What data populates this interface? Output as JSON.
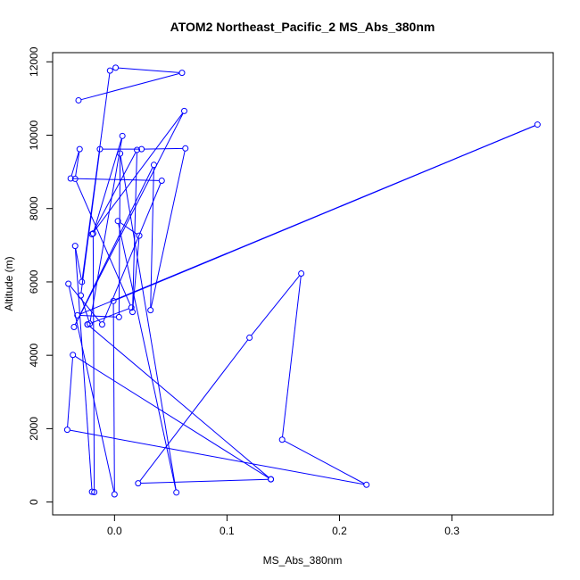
{
  "chart_data": {
    "type": "line",
    "title": "ATOM2 Northeast_Pacific_2 MS_Abs_380nm",
    "xlabel": "MS_Abs_380nm",
    "ylabel": "Altitude (m)",
    "xlim": [
      -0.055,
      0.39
    ],
    "ylim": [
      -350,
      12250
    ],
    "x_ticks": [
      {
        "value": 0.0,
        "label": "0.0"
      },
      {
        "value": 0.1,
        "label": "0.1"
      },
      {
        "value": 0.2,
        "label": "0.2"
      },
      {
        "value": 0.3,
        "label": "0.3"
      }
    ],
    "y_ticks": [
      {
        "value": 0,
        "label": "0"
      },
      {
        "value": 2000,
        "label": "2000"
      },
      {
        "value": 4000,
        "label": "4000"
      },
      {
        "value": 6000,
        "label": "6000"
      },
      {
        "value": 8000,
        "label": "8000"
      },
      {
        "value": 10000,
        "label": "10000"
      },
      {
        "value": 12000,
        "label": "12000"
      }
    ],
    "series_color": "#0000ff",
    "series": [
      {
        "points": [
          {
            "x": -0.032,
            "y": 10950
          },
          {
            "x": 0.06,
            "y": 11700
          },
          {
            "x": 0.001,
            "y": 11840
          },
          {
            "x": -0.004,
            "y": 11760
          },
          {
            "x": -0.029,
            "y": 6000
          },
          {
            "x": -0.035,
            "y": 6980
          },
          {
            "x": -0.02,
            "y": 280
          },
          {
            "x": -0.018,
            "y": 270
          },
          {
            "x": -0.019,
            "y": 7320
          },
          {
            "x": 0.007,
            "y": 9980
          },
          {
            "x": -0.022,
            "y": 4860
          },
          {
            "x": -0.03,
            "y": 5630
          },
          {
            "x": -0.013,
            "y": 9620
          },
          {
            "x": 0.024,
            "y": 9620
          },
          {
            "x": 0.063,
            "y": 9640
          },
          {
            "x": 0.032,
            "y": 5230
          },
          {
            "x": 0.035,
            "y": 9190
          },
          {
            "x": -0.036,
            "y": 4770
          },
          {
            "x": 0.062,
            "y": 10660
          },
          {
            "x": -0.02,
            "y": 7300
          },
          {
            "x": 0.02,
            "y": 9600
          },
          {
            "x": 0.016,
            "y": 5180
          },
          {
            "x": 0.022,
            "y": 7260
          },
          {
            "x": 0.003,
            "y": 7660
          },
          {
            "x": 0.055,
            "y": 260
          },
          {
            "x": 0.005,
            "y": 9500
          },
          {
            "x": 0.004,
            "y": 5040
          },
          {
            "x": -0.033,
            "y": 5090
          },
          {
            "x": 0.376,
            "y": 10290
          },
          {
            "x": -0.001,
            "y": 5480
          },
          {
            "x": 0.0,
            "y": 210
          },
          {
            "x": -0.041,
            "y": 5950
          },
          {
            "x": -0.011,
            "y": 4840
          },
          {
            "x": 0.042,
            "y": 8760
          },
          {
            "x": -0.039,
            "y": 8820
          },
          {
            "x": -0.031,
            "y": 9620
          },
          {
            "x": -0.035,
            "y": 8810
          },
          {
            "x": 0.015,
            "y": 5300
          },
          {
            "x": -0.024,
            "y": 4840
          },
          {
            "x": -0.024,
            "y": 4840
          },
          {
            "x": 0.139,
            "y": 620
          },
          {
            "x": 0.021,
            "y": 510
          },
          {
            "x": 0.12,
            "y": 4480
          },
          {
            "x": 0.166,
            "y": 6230
          },
          {
            "x": 0.149,
            "y": 1700
          },
          {
            "x": 0.224,
            "y": 470
          },
          {
            "x": -0.042,
            "y": 1970
          },
          {
            "x": -0.037,
            "y": 4010
          },
          {
            "x": 0.139,
            "y": 620
          }
        ]
      }
    ]
  }
}
